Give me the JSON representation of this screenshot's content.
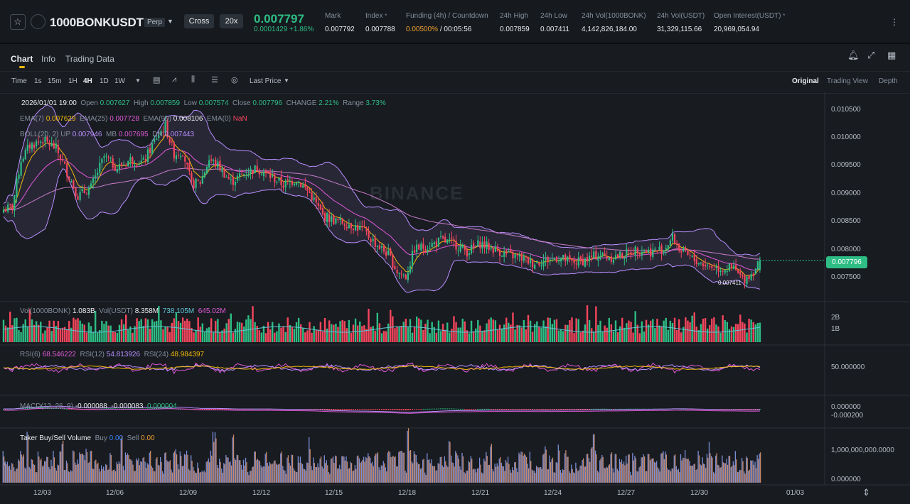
{
  "header": {
    "symbol": "1000BONKUSDT",
    "contract_type": "Perp",
    "margin_mode": "Cross",
    "leverage": "20x",
    "last_price": "0.007797",
    "change": "0.0001429 +1.86%",
    "stats": [
      {
        "label": "Mark",
        "value": "0.007792"
      },
      {
        "label": "Index",
        "value": "0.007788"
      },
      {
        "label": "Funding (4h) / Countdown",
        "value_rate": "0.00500%",
        "value_time": "/ 00:05:56"
      },
      {
        "label": "24h High",
        "value": "0.007859"
      },
      {
        "label": "24h Low",
        "value": "0.007411"
      },
      {
        "label": "24h Vol(1000BONK)",
        "value": "4,142,826,184.00"
      },
      {
        "label": "24h Vol(USDT)",
        "value": "31,329,115.66"
      },
      {
        "label": "Open Interest(USDT)",
        "value": "20,969,054.94"
      }
    ]
  },
  "tabs": [
    "Chart",
    "Info",
    "Trading Data"
  ],
  "toolbar": {
    "timeframes": [
      "Time",
      "1s",
      "15m",
      "1H",
      "4H",
      "1D",
      "1W"
    ],
    "active_timeframe": "4H",
    "price_type": "Last Price",
    "views": [
      "Original",
      "Trading View",
      "Depth"
    ],
    "active_view": "Original"
  },
  "legend": {
    "ohlc": {
      "date": "2026/01/01 19:00",
      "open_label": "Open",
      "open": "0.007627",
      "high_label": "High",
      "high": "0.007859",
      "low_label": "Low",
      "low": "0.007574",
      "close_label": "Close",
      "close": "0.007796",
      "change_label": "CHANGE",
      "change": "2.21%",
      "range_label": "Range",
      "range": "3.73%"
    },
    "ema": {
      "ema7_label": "EMA(7)",
      "ema7": "0.007629",
      "ema25_label": "EMA(25)",
      "ema25": "0.007728",
      "ema99_label": "EMA(99)",
      "ema99": "0.008106",
      "ema0_label": "EMA(0)",
      "ema0": "NaN"
    },
    "boll": {
      "label": "BOLL(20, 2)",
      "up_label": "UP",
      "up": "0.007946",
      "mb_label": "MB",
      "mb": "0.007695",
      "dn_label": "DN",
      "dn": "0.007443"
    },
    "vol": {
      "label": "Vol(1000BONK)",
      "v1": "1.083B",
      "label2": "Vol(USDT)",
      "v2": "8.358M",
      "v3": "738.105M",
      "v4": "645.02M"
    },
    "rsi": {
      "label6": "RSI(6)",
      "rsi6": "68.546222",
      "label12": "RSI(12)",
      "rsi12": "54.813926",
      "label24": "RSI(24)",
      "rsi24": "48.984397"
    },
    "macd": {
      "label": "MACD(12, 26, 9)",
      "dif": "-0.000088",
      "dea": "-0.000083",
      "hist": "0.000004"
    },
    "taker": {
      "label": "Taker Buy/Sell Volume",
      "buy_label": "Buy",
      "buy": "0.00",
      "sell_label": "Sell",
      "sell": "0.00"
    }
  },
  "price_axis": [
    "0.010500",
    "0.010000",
    "0.009500",
    "0.009000",
    "0.008500",
    "0.008000",
    "0.007500"
  ],
  "current_price_tag": "0.007796",
  "low_marker": "0.007411",
  "vol_axis": [
    "2B",
    "1B"
  ],
  "rsi_axis": [
    "50.000000"
  ],
  "macd_axis": [
    "0.000000",
    "-0.000200"
  ],
  "taker_axis": [
    "1,000,000,000.0000",
    "0.000000"
  ],
  "time_axis": [
    "12/03",
    "12/06",
    "12/09",
    "12/12",
    "12/15",
    "12/18",
    "12/21",
    "12/24",
    "12/27",
    "12/30",
    "01/03"
  ],
  "watermark": "BINANCE",
  "colors": {
    "up": "#2ebd85",
    "down": "#f6465d",
    "ema7": "#f0b90b",
    "ema25": "#e059d8",
    "boll": "#b98fff"
  },
  "chart_data": {
    "type": "candlestick",
    "interval": "4H",
    "price_range": [
      0.0073,
      0.0108
    ],
    "close_anchors": [
      [
        0,
        0.0087
      ],
      [
        4,
        0.00875
      ],
      [
        8,
        0.0096
      ],
      [
        12,
        0.00985
      ],
      [
        18,
        0.00995
      ],
      [
        24,
        0.0098
      ],
      [
        30,
        0.0093
      ],
      [
        34,
        0.00895
      ],
      [
        40,
        0.0091
      ],
      [
        46,
        0.00965
      ],
      [
        52,
        0.00945
      ],
      [
        58,
        0.0096
      ],
      [
        64,
        0.00955
      ],
      [
        70,
        0.01
      ],
      [
        74,
        0.0102
      ],
      [
        78,
        0.0097
      ],
      [
        82,
        0.00975
      ],
      [
        86,
        0.00915
      ],
      [
        90,
        0.0092
      ],
      [
        94,
        0.0096
      ],
      [
        98,
        0.0095
      ],
      [
        104,
        0.0092
      ],
      [
        110,
        0.00935
      ],
      [
        116,
        0.00945
      ],
      [
        122,
        0.0093
      ],
      [
        128,
        0.00915
      ],
      [
        134,
        0.00925
      ],
      [
        140,
        0.009
      ],
      [
        146,
        0.0086
      ],
      [
        152,
        0.0085
      ],
      [
        158,
        0.00845
      ],
      [
        164,
        0.00835
      ],
      [
        170,
        0.0081
      ],
      [
        176,
        0.0079
      ],
      [
        180,
        0.0076
      ],
      [
        184,
        0.0075
      ],
      [
        188,
        0.008
      ],
      [
        194,
        0.00805
      ],
      [
        200,
        0.00815
      ],
      [
        206,
        0.0081
      ],
      [
        212,
        0.00795
      ],
      [
        218,
        0.0081
      ],
      [
        224,
        0.008
      ],
      [
        230,
        0.0079
      ],
      [
        236,
        0.00785
      ],
      [
        242,
        0.00775
      ],
      [
        248,
        0.0078
      ],
      [
        254,
        0.00785
      ],
      [
        260,
        0.00775
      ],
      [
        266,
        0.0078
      ],
      [
        272,
        0.0079
      ],
      [
        278,
        0.00785
      ],
      [
        284,
        0.0079
      ],
      [
        290,
        0.008
      ],
      [
        296,
        0.00795
      ],
      [
        302,
        0.008
      ],
      [
        306,
        0.0082
      ],
      [
        310,
        0.00795
      ],
      [
        316,
        0.0078
      ],
      [
        322,
        0.0077
      ],
      [
        328,
        0.00765
      ],
      [
        334,
        0.00765
      ],
      [
        338,
        0.00745
      ],
      [
        342,
        0.00755
      ],
      [
        346,
        0.0078
      ]
    ]
  }
}
